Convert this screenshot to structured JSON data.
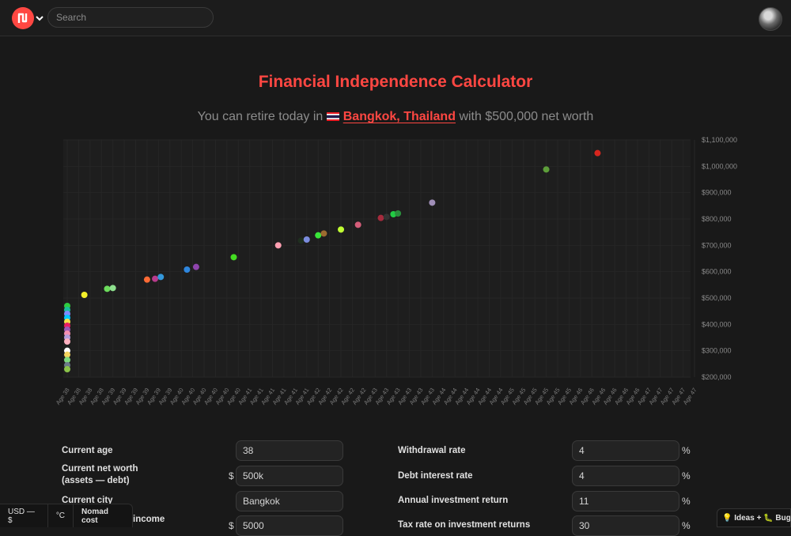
{
  "topbar": {
    "search_placeholder": "Search"
  },
  "header": {
    "title": "Financial Independence Calculator",
    "subtitle_pre": "You can retire today in",
    "subtitle_city": "Bangkok, Thailand",
    "subtitle_post": "with $500,000 net worth"
  },
  "form": {
    "current_age_label": "Current age",
    "current_age_value": "38",
    "net_worth_label_line1": "Current net worth",
    "net_worth_label_line2": "(assets — debt)",
    "net_worth_value": "500k",
    "city_label": "Current city",
    "city_value": "Bangkok",
    "income_label": "income",
    "income_value": "5000",
    "dollar_sign": "$",
    "withdrawal_label": "Withdrawal rate",
    "withdrawal_value": "4",
    "debt_interest_label": "Debt interest rate",
    "debt_interest_value": "4",
    "investment_return_label": "Annual investment return",
    "investment_return_value": "11",
    "tax_rate_label": "Tax rate on investment returns",
    "tax_rate_value": "30",
    "percent_sign": "%"
  },
  "bottom_bar": {
    "currency": "USD — $",
    "temperature": "°C",
    "nomad_cost": "Nomad cost"
  },
  "ideas_bugs": "💡 Ideas + 🐛 Bugs",
  "colors": {
    "accent": "#ff4742",
    "background": "#191919",
    "chart_bg": "#1e1e1e"
  },
  "chart_data": {
    "type": "scatter",
    "xlabel": "",
    "ylabel": "",
    "ylim": [
      200000,
      1100000
    ],
    "y_ticks": [
      "$1,100,000",
      "$1,000,000",
      "$900,000",
      "$800,000",
      "$700,000",
      "$600,000",
      "$500,000",
      "$400,000",
      "$300,000",
      "$200,000"
    ],
    "x_ticks": [
      "Age 38",
      "Age 38",
      "Age 38",
      "Age 38",
      "Age 39",
      "Age 39",
      "Age 39",
      "Age 39",
      "Age 39",
      "Age 39",
      "Age 40",
      "Age 40",
      "Age 40",
      "Age 40",
      "Age 40",
      "Age 40",
      "Age 41",
      "Age 41",
      "Age 41",
      "Age 41",
      "Age 41",
      "Age 41",
      "Age 42",
      "Age 42",
      "Age 42",
      "Age 42",
      "Age 42",
      "Age 43",
      "Age 43",
      "Age 43",
      "Age 43",
      "Age 43",
      "Age 43",
      "Age 44",
      "Age 44",
      "Age 44",
      "Age 44",
      "Age 44",
      "Age 44",
      "Age 45",
      "Age 45",
      "Age 45",
      "Age 45",
      "Age 45",
      "Age 45",
      "Age 46",
      "Age 46",
      "Age 46",
      "Age 46",
      "Age 46",
      "Age 46",
      "Age 47",
      "Age 47",
      "Age 47",
      "Age 47",
      "Age 47"
    ],
    "grid": true,
    "points": [
      {
        "x": 0,
        "y": 470000,
        "color": "#2ecc40"
      },
      {
        "x": 0,
        "y": 455000,
        "color": "#1abc9c"
      },
      {
        "x": 0,
        "y": 440000,
        "color": "#7f8cff"
      },
      {
        "x": 0,
        "y": 425000,
        "color": "#00c8ff"
      },
      {
        "x": 0,
        "y": 410000,
        "color": "#f1e04b"
      },
      {
        "x": 0,
        "y": 395000,
        "color": "#e91e63"
      },
      {
        "x": 0,
        "y": 380000,
        "color": "#9b59b6"
      },
      {
        "x": 0,
        "y": 365000,
        "color": "#f48fb1"
      },
      {
        "x": 0,
        "y": 350000,
        "color": "#b39ddb"
      },
      {
        "x": 0,
        "y": 335000,
        "color": "#ffb0c0"
      },
      {
        "x": 0,
        "y": 300000,
        "color": "#ffffff"
      },
      {
        "x": 0,
        "y": 285000,
        "color": "#f4d35e"
      },
      {
        "x": 0,
        "y": 265000,
        "color": "#7dd87d"
      },
      {
        "x": 0,
        "y": 245000,
        "color": "#6c7a89"
      },
      {
        "x": 0,
        "y": 230000,
        "color": "#8bc34a"
      },
      {
        "x": 1.5,
        "y": 512000,
        "color": "#f4f02a"
      },
      {
        "x": 3.5,
        "y": 535000,
        "color": "#6cdc5c"
      },
      {
        "x": 4,
        "y": 538000,
        "color": "#8ee08e"
      },
      {
        "x": 7,
        "y": 570000,
        "color": "#ff6b35"
      },
      {
        "x": 7.7,
        "y": 573000,
        "color": "#b83b8c"
      },
      {
        "x": 8.2,
        "y": 580000,
        "color": "#3498db"
      },
      {
        "x": 10.5,
        "y": 608000,
        "color": "#2e86de"
      },
      {
        "x": 11.3,
        "y": 618000,
        "color": "#8e44ad"
      },
      {
        "x": 14.6,
        "y": 655000,
        "color": "#44dd22"
      },
      {
        "x": 18.5,
        "y": 700000,
        "color": "#ff9fb1"
      },
      {
        "x": 20.5,
        "y": 718000,
        "color": "#1f2f1f"
      },
      {
        "x": 21,
        "y": 722000,
        "color": "#7b8cde"
      },
      {
        "x": 22,
        "y": 738000,
        "color": "#39e639"
      },
      {
        "x": 22.5,
        "y": 745000,
        "color": "#9c6b30"
      },
      {
        "x": 24,
        "y": 760000,
        "color": "#c0ff33"
      },
      {
        "x": 25.5,
        "y": 778000,
        "color": "#d45d79"
      },
      {
        "x": 27.5,
        "y": 804000,
        "color": "#a62b3d"
      },
      {
        "x": 28,
        "y": 808000,
        "color": "#333333"
      },
      {
        "x": 28.6,
        "y": 818000,
        "color": "#22cc44"
      },
      {
        "x": 29,
        "y": 821000,
        "color": "#2a8f3c"
      },
      {
        "x": 32,
        "y": 862000,
        "color": "#a08fb8"
      },
      {
        "x": 42,
        "y": 988000,
        "color": "#5d9e3a"
      },
      {
        "x": 46.5,
        "y": 1050000,
        "color": "#d7261e"
      }
    ]
  }
}
